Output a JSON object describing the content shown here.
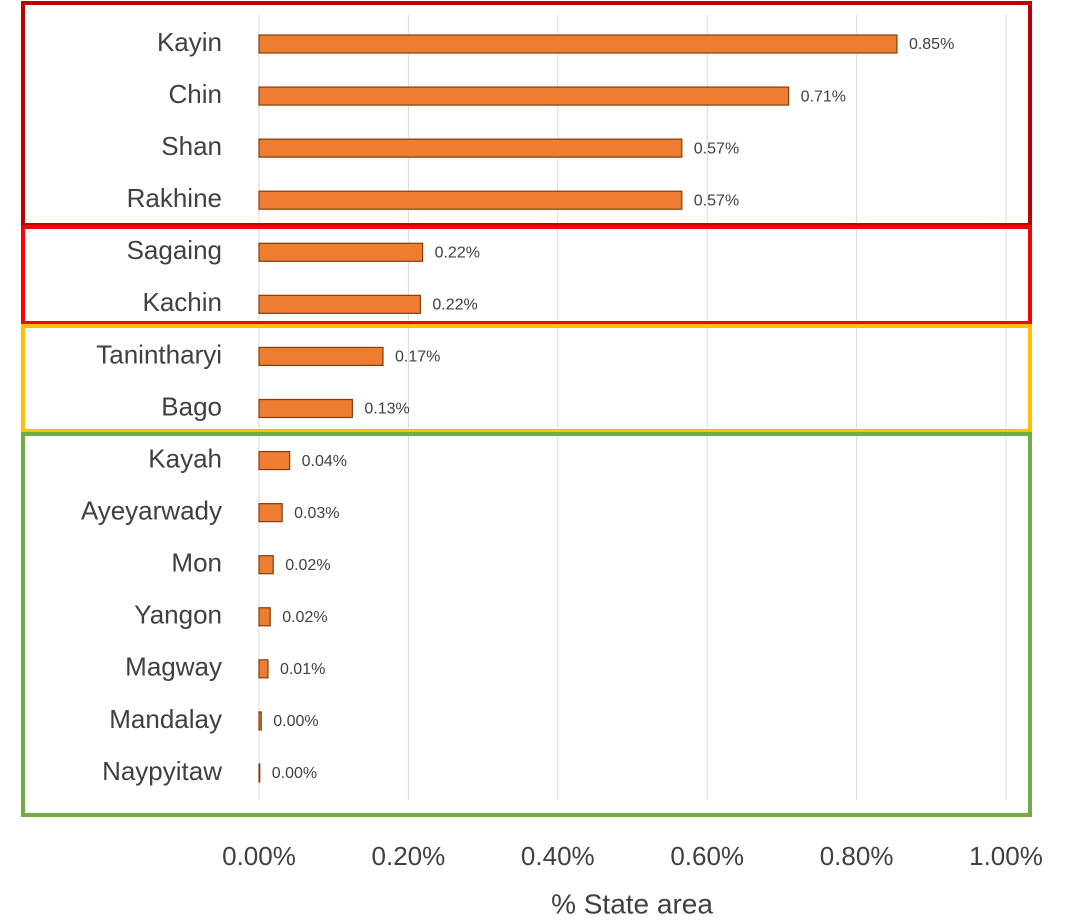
{
  "chart_data": {
    "type": "barh",
    "xlabel": "% State area",
    "categories": [
      "Kayin",
      "Chin",
      "Shan",
      "Rakhine",
      "Sagaing",
      "Kachin",
      "Tanintharyi",
      "Bago",
      "Kayah",
      "Ayeyarwady",
      "Mon",
      "Yangon",
      "Magway",
      "Mandalay",
      "Naypyitaw"
    ],
    "values": [
      0.854,
      0.709,
      0.566,
      0.566,
      0.219,
      0.216,
      0.166,
      0.125,
      0.041,
      0.031,
      0.019,
      0.015,
      0.012,
      0.003,
      0.001
    ],
    "value_labels": [
      "0.85%",
      "0.71%",
      "0.57%",
      "0.57%",
      "0.22%",
      "0.22%",
      "0.17%",
      "0.13%",
      "0.04%",
      "0.03%",
      "0.02%",
      "0.02%",
      "0.01%",
      "0.00%",
      "0.00%"
    ],
    "color": "#ed7d31",
    "xlim": [
      0,
      1
    ],
    "xticks": [
      {
        "value": 0,
        "label": "0.00%"
      },
      {
        "value": 0.2,
        "label": "0.20%"
      },
      {
        "value": 0.4,
        "label": "0.40%"
      },
      {
        "value": 0.6,
        "label": "0.60%"
      },
      {
        "value": 0.8,
        "label": "0.80%"
      },
      {
        "value": 1,
        "label": "1.00%"
      }
    ],
    "grid": true
  }
}
